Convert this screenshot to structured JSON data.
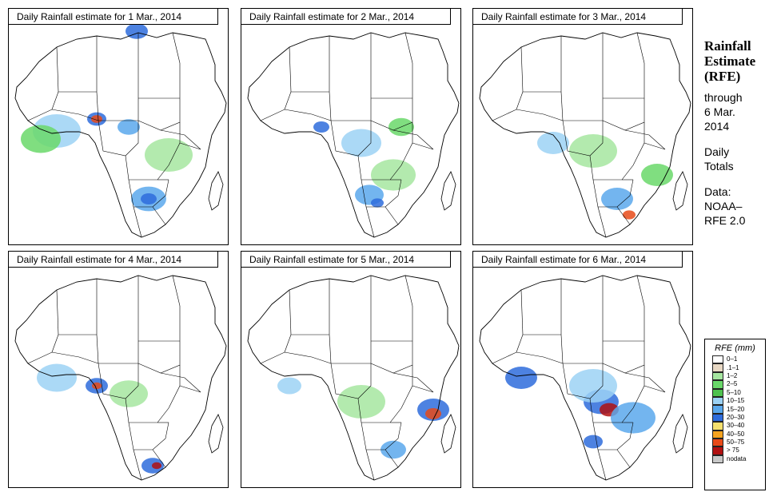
{
  "panels": [
    {
      "title": "Daily Rainfall estimate for  1 Mar., 2014"
    },
    {
      "title": "Daily Rainfall estimate for  2 Mar., 2014"
    },
    {
      "title": "Daily Rainfall estimate for  3 Mar., 2014"
    },
    {
      "title": "Daily Rainfall estimate for  4 Mar., 2014"
    },
    {
      "title": "Daily Rainfall estimate for  5 Mar., 2014"
    },
    {
      "title": "Daily Rainfall estimate for  6 Mar., 2014"
    }
  ],
  "side": {
    "heading": [
      "Rainfall",
      "Estimate",
      "(RFE)"
    ],
    "through": [
      "through",
      "6 Mar.",
      "2014"
    ],
    "totals": [
      "Daily",
      "Totals"
    ],
    "source": [
      "Data:",
      "NOAA–",
      "RFE 2.0"
    ]
  },
  "legend": {
    "title": "RFE (mm)",
    "items": [
      {
        "label": "0–1",
        "color": "#ffffff"
      },
      {
        "label": ".1–1",
        "color": "#e8d8c4"
      },
      {
        "label": "1–2",
        "color": "#a6e6a0"
      },
      {
        "label": "2–5",
        "color": "#6ad86a"
      },
      {
        "label": "5–10",
        "color": "#4fc24f"
      },
      {
        "label": "10–15",
        "color": "#9cd2f4"
      },
      {
        "label": "15–20",
        "color": "#5aa8ec"
      },
      {
        "label": "20–30",
        "color": "#2e6cdc"
      },
      {
        "label": "30–40",
        "color": "#f5e06e"
      },
      {
        "label": "40–50",
        "color": "#f5a420"
      },
      {
        "label": "50–75",
        "color": "#e84a18"
      },
      {
        "label": "> 75",
        "color": "#b01010"
      },
      {
        "label": "nodata",
        "color": "#c8c8c8"
      }
    ]
  },
  "colors": {
    "ocean": "#ffffff",
    "land": "#ffffff",
    "border": "#000000"
  }
}
